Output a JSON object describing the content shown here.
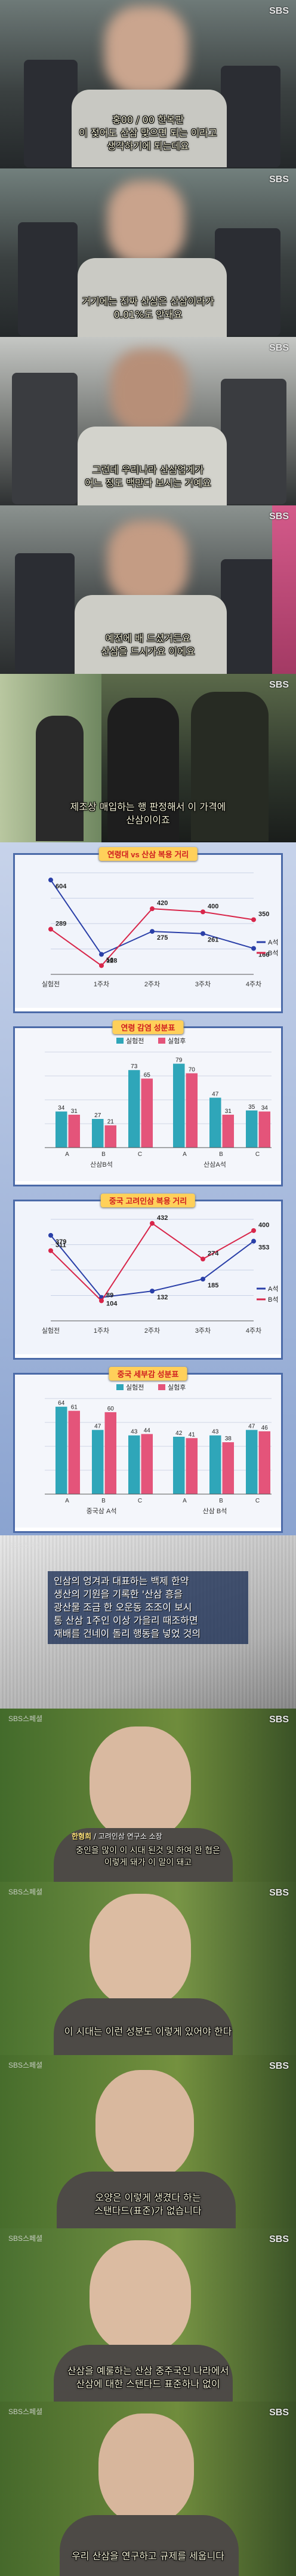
{
  "logos": {
    "sbs": "SBS",
    "program": "SBS스페셜"
  },
  "frames": [
    {
      "subtitle": "홍00 / 00 한복판\n이 젖어도 산삼 맞으면 되는 이라고\n생각하기에 되는데요"
    },
    {
      "subtitle": "거기에는 진짜 산삼은 산삼이라가\n0.01%도 안돼요"
    },
    {
      "subtitle": "그런데 우리나라 산삼업계가\n어느 정도 백만다 보시는 거예요"
    },
    {
      "subtitle": "예전에 배 드셨거든요\n산삼을 드시가요 이에요"
    },
    {
      "subtitle": "제조상 매입하는 행 판정해서 이 가격에\n산삼이이죠"
    }
  ],
  "charts": [
    {
      "title": "연령대 vs 산삼 복용 거리",
      "chart_data": {
        "type": "line",
        "categories": [
          "실험전",
          "1주차",
          "2주차",
          "3주차",
          "4주차"
        ],
        "series": [
          {
            "name": "A석",
            "values": [
              604,
              128,
              275,
              261,
              166
            ]
          },
          {
            "name": "B석",
            "values": [
              289,
              56,
              420,
              400,
              350
            ]
          }
        ],
        "point_labels": [
          "604",
          "289",
          "128",
          "56",
          "420",
          "275",
          "261",
          "166",
          "400",
          "350"
        ],
        "ylim": [
          0,
          650
        ]
      },
      "legend": [
        "A석",
        "B석"
      ]
    },
    {
      "title": "연령 감염 성분표",
      "chart_data": {
        "type": "bar",
        "categories": [
          "A",
          "B",
          "C",
          "A",
          "B",
          "C"
        ],
        "series": [
          {
            "name": "실험전",
            "values": [
              34,
              27,
              73,
              79,
              47,
              35
            ]
          },
          {
            "name": "실험후",
            "values": [
              31,
              21,
              65,
              70,
              31,
              34
            ]
          }
        ],
        "groups": [
          "산삼B석",
          "산삼A석"
        ],
        "ylim": [
          0,
          90
        ]
      },
      "legend": [
        "실험전",
        "실험후"
      ]
    },
    {
      "title": "중국 고려인삼 복용 거리",
      "chart_data": {
        "type": "line",
        "categories": [
          "실험전",
          "1주차",
          "2주차",
          "3주차",
          "4주차"
        ],
        "series": [
          {
            "name": "A석",
            "values": [
              379,
              104,
              132,
              185,
              353
            ]
          },
          {
            "name": "B석",
            "values": [
              311,
              89,
              432,
              274,
              400
            ]
          }
        ],
        "point_labels": [
          "379",
          "311",
          "104",
          "89",
          "432",
          "132",
          "274",
          "185",
          "353",
          "400"
        ],
        "ylim": [
          0,
          450
        ]
      },
      "legend": [
        "A석",
        "B석"
      ]
    },
    {
      "title": "중국 세부감 성분표",
      "chart_data": {
        "type": "bar",
        "categories": [
          "A",
          "B",
          "C",
          "A",
          "B",
          "C"
        ],
        "series": [
          {
            "name": "실험전",
            "values": [
              64,
              47,
              43,
              42,
              43,
              47
            ]
          },
          {
            "name": "실험후",
            "values": [
              61,
              60,
              44,
              41,
              38,
              46
            ]
          }
        ],
        "groups": [
          "중국삼 A석",
          "산삼 B석"
        ],
        "ylim": [
          0,
          70
        ]
      },
      "legend": [
        "실험전",
        "실험후"
      ]
    }
  ],
  "newspaper": {
    "caption": "인삼의 엉겨과 대표하는 백제 한약\n생산의 기원을 기록한 '산삼 흥을\n광산물 조금 한 오운동 조조이 보시\n통 산삼 1주인 이상 가을리 때조하면\n재배를 건네이 돌리 행동을 넣었 것의"
  },
  "interviews": [
    {
      "subtitle": "",
      "name": "한형희",
      "role": "/ 고려인삼 연구소 소장",
      "line2": "중인을 많이 이 시대 된것 및 하여 한 협은\n이렇게 돼가 이 말이 돼고"
    },
    {
      "subtitle": "이 시대는 이런 성분도 이렇게 있어야 한다"
    },
    {
      "subtitle": "오양은 이렇게 생겼다 하는\n스탠다드(표준)가 없습니다"
    },
    {
      "subtitle": "산삼을 예룰하는 산삼 중주국인 나라에서\n산삼에 대한 스탠다드 표준하나 없이"
    },
    {
      "subtitle": "우리 산삼을 연구하고 규제를 세웁니다"
    }
  ]
}
